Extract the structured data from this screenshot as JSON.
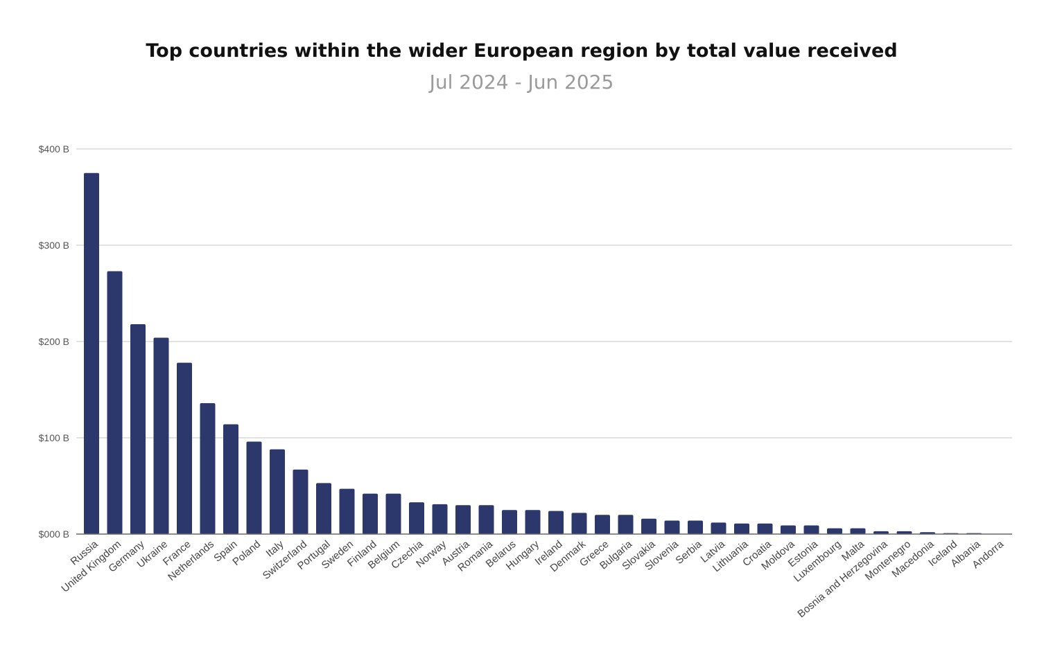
{
  "chart_data": {
    "type": "bar",
    "title": "Top countries within the wider European region by total value received",
    "subtitle": "Jul 2024 - Jun 2025",
    "xlabel": "",
    "ylabel": "",
    "ylim": [
      0,
      400
    ],
    "yticks": [
      0,
      100,
      200,
      300,
      400
    ],
    "ytick_labels": [
      "$000 B",
      "$100 B",
      "$200 B",
      "$300 B",
      "$400 B"
    ],
    "grid": true,
    "bar_color": "#2c386b",
    "categories": [
      "Russia",
      "United Kingdom",
      "Germany",
      "Ukraine",
      "France",
      "Netherlands",
      "Spain",
      "Poland",
      "Italy",
      "Switzerland",
      "Portugal",
      "Sweden",
      "Finland",
      "Belgium",
      "Czechia",
      "Norway",
      "Austria",
      "Romania",
      "Belarus",
      "Hungary",
      "Ireland",
      "Denmark",
      "Greece",
      "Bulgaria",
      "Slovakia",
      "Slovenia",
      "Serbia",
      "Latvia",
      "Lithuania",
      "Croatia",
      "Moldova",
      "Estonia",
      "Luxembourg",
      "Malta",
      "Bosnia and Herzegovina",
      "Montenegro",
      "Macedonia",
      "Iceland",
      "Albania",
      "Andorra"
    ],
    "values": [
      375,
      273,
      218,
      204,
      178,
      136,
      114,
      96,
      88,
      67,
      53,
      47,
      42,
      42,
      33,
      31,
      30,
      30,
      25,
      25,
      24,
      22,
      20,
      20,
      16,
      14,
      14,
      12,
      11,
      11,
      9,
      9,
      6,
      6,
      3,
      3,
      2,
      1,
      1,
      0.2
    ]
  }
}
